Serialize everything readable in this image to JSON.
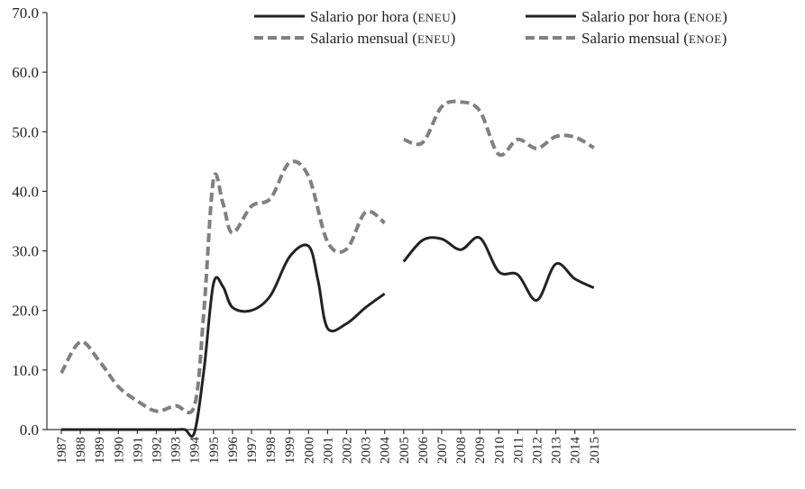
{
  "chart_data": {
    "type": "line",
    "title": "",
    "xlabel": "",
    "ylabel": "",
    "ylim": [
      0,
      70
    ],
    "yticks": [
      "0.0",
      "10.0",
      "20.0",
      "30.0",
      "40.0",
      "50.0",
      "60.0",
      "70.0"
    ],
    "categories": [
      "1987",
      "1988",
      "1989",
      "1990",
      "1991",
      "1992",
      "1993",
      "1994",
      "1995",
      "1996",
      "1997",
      "1998",
      "1999",
      "2000",
      "2001",
      "2002",
      "2003",
      "2004",
      "2005",
      "2006",
      "2007",
      "2008",
      "2009",
      "2010",
      "2011",
      "2012",
      "2013",
      "2014",
      "2015"
    ],
    "grid": false,
    "legend_position": "top-right",
    "series": [
      {
        "name": "Salario por hora (ENEU)",
        "color": "#222222",
        "style": "solid",
        "x": [
          "1987",
          "1988",
          "1989",
          "1990",
          "1991",
          "1992",
          "1993",
          "1993.5",
          "1994",
          "1994.5",
          "1995",
          "1995.5",
          "1996",
          "1997",
          "1998",
          "1999",
          "2000",
          "2000.5",
          "2001",
          "2002",
          "2003",
          "2004"
        ],
        "values": [
          0,
          0,
          0,
          0,
          0,
          0,
          0,
          0,
          -0.5,
          10,
          24.5,
          24,
          20.5,
          20,
          22.5,
          29,
          30.8,
          25,
          17,
          17.8,
          20.5,
          22.8
        ]
      },
      {
        "name": "Salario mensual (ENEU)",
        "color": "#808080",
        "style": "dashed",
        "x": [
          "1987",
          "1988",
          "1989",
          "1990",
          "1991",
          "1992",
          "1993",
          "1994",
          "1994.5",
          "1995",
          "1995.5",
          "1996",
          "1997",
          "1998",
          "1999",
          "2000",
          "2001",
          "2002",
          "2003",
          "2004"
        ],
        "values": [
          9.5,
          14.7,
          11.5,
          7.2,
          4.8,
          3.1,
          4,
          4,
          20,
          42,
          38,
          33,
          37.5,
          38.8,
          44.8,
          42.5,
          31.5,
          30.3,
          36.5,
          34.7
        ]
      },
      {
        "name": "Salario por hora (ENOE)",
        "color": "#222222",
        "style": "solid",
        "x": [
          "2005",
          "2006",
          "2007",
          "2008",
          "2009",
          "2010",
          "2011",
          "2012",
          "2013",
          "2014",
          "2015"
        ],
        "values": [
          28.2,
          31.8,
          32,
          30.2,
          32.2,
          26.5,
          26,
          21.7,
          27.8,
          25.3,
          23.8
        ]
      },
      {
        "name": "Salario mensual (ENOE)",
        "color": "#808080",
        "style": "dashed",
        "x": [
          "2005",
          "2006",
          "2007",
          "2008",
          "2009",
          "2010",
          "2011",
          "2012",
          "2013",
          "2014",
          "2015"
        ],
        "values": [
          48.7,
          48.2,
          54.2,
          55,
          53.5,
          46.2,
          48.7,
          47.2,
          49.2,
          49.1,
          47.3
        ]
      }
    ],
    "legend": [
      {
        "label": "Salario por hora ",
        "tag": "ENEU",
        "close": ")",
        "open": "(",
        "series": 0
      },
      {
        "label": "Salario por hora ",
        "tag": "ENOE",
        "close": ")",
        "open": "(",
        "series": 2
      },
      {
        "label": "Salario mensual ",
        "tag": "ENEU",
        "close": ")",
        "open": "(",
        "series": 1
      },
      {
        "label": "Salario mensual ",
        "tag": "ENOE",
        "close": ")",
        "open": "(",
        "series": 3
      }
    ]
  }
}
